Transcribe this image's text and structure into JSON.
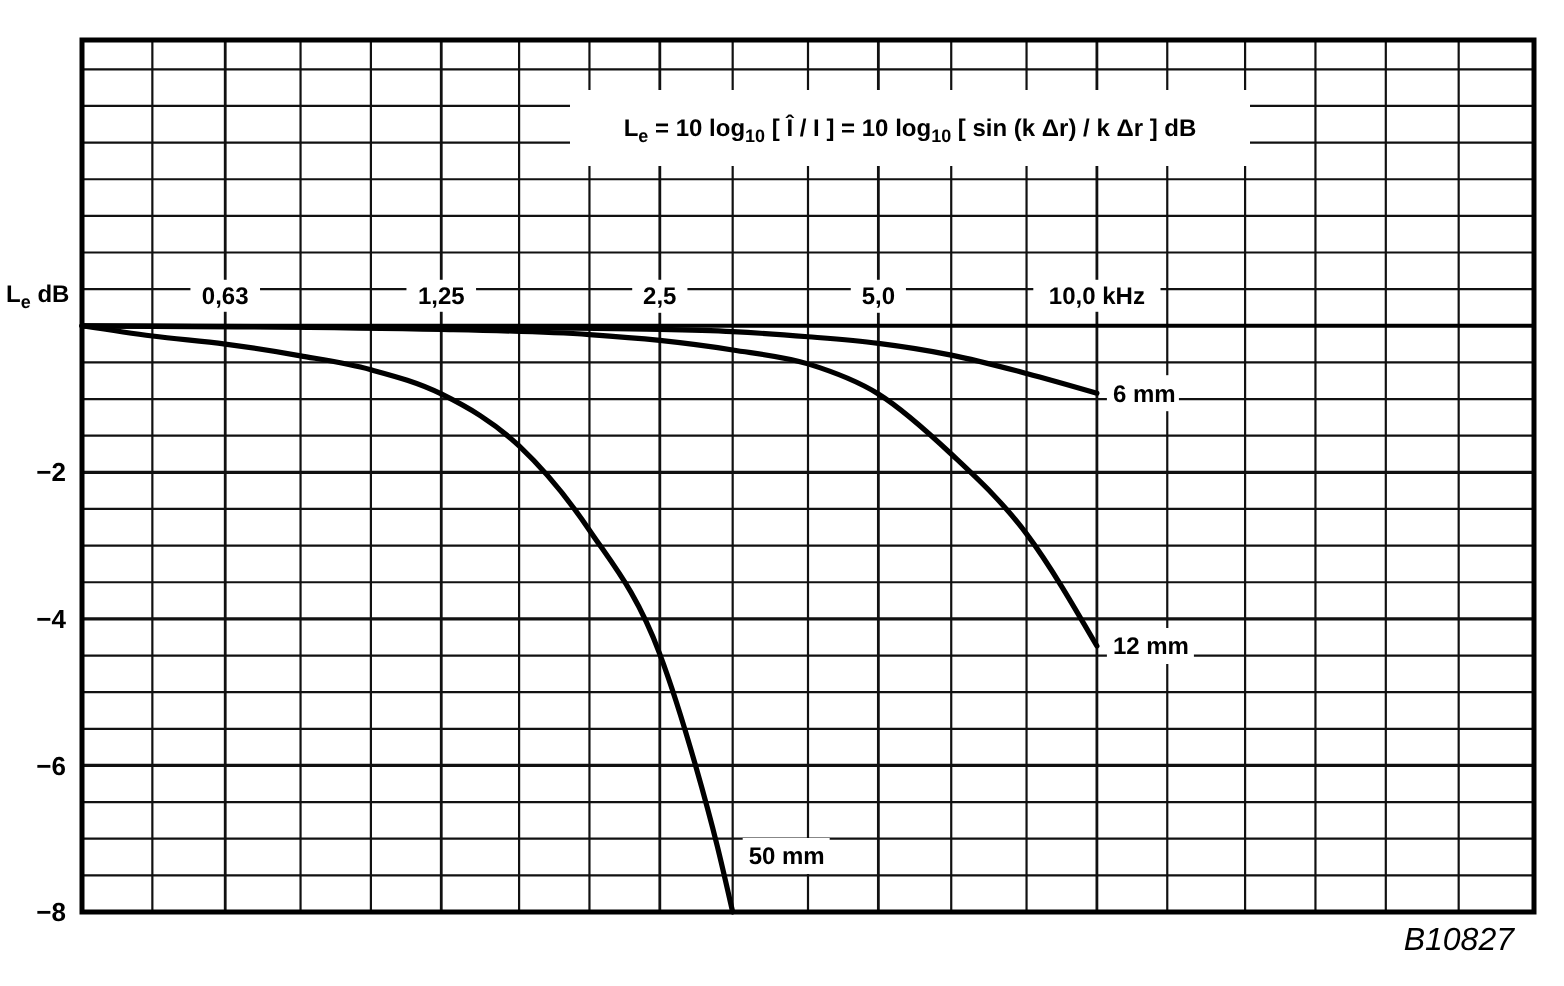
{
  "chart_data": {
    "type": "line",
    "log": "x",
    "grid": true,
    "ylabel": "L$_{e}$ dB",
    "annotations": [
      "L$_{e}$ = 10 log$_{10}$ [ Î / I ] = 10 log$_{10}$ [ sin (k Δr) / k Δr ] dB",
      "B10827"
    ],
    "xlim": [
      0.4,
      40
    ],
    "xticks": [
      {
        "value": 0.4,
        "label": null
      },
      {
        "value": 0.5,
        "label": null
      },
      {
        "value": 0.63,
        "label": "0,63"
      },
      {
        "value": 0.8,
        "label": null
      },
      {
        "value": 1,
        "label": null
      },
      {
        "value": 1.25,
        "label": "1,25"
      },
      {
        "value": 1.6,
        "label": null
      },
      {
        "value": 2,
        "label": null
      },
      {
        "value": 2.5,
        "label": "2,5"
      },
      {
        "value": 3.15,
        "label": null
      },
      {
        "value": 4,
        "label": null
      },
      {
        "value": 5,
        "label": "5,0"
      },
      {
        "value": 6.3,
        "label": null
      },
      {
        "value": 8,
        "label": null
      },
      {
        "value": 10,
        "label": "10,0 kHz"
      },
      {
        "value": 12.5,
        "label": null
      },
      {
        "value": 16,
        "label": null
      },
      {
        "value": 20,
        "label": null
      },
      {
        "value": 25,
        "label": null
      },
      {
        "value": 31.5,
        "label": null
      },
      {
        "value": 40,
        "label": null
      }
    ],
    "ylim": [
      -8,
      3.9
    ],
    "yticks": [
      {
        "value": -8,
        "label": "−8"
      },
      {
        "value": -7.5,
        "label": null
      },
      {
        "value": -7,
        "label": null
      },
      {
        "value": -6.5,
        "label": null
      },
      {
        "value": -6,
        "label": "−6"
      },
      {
        "value": -5.5,
        "label": null
      },
      {
        "value": -5,
        "label": null
      },
      {
        "value": -4.5,
        "label": null
      },
      {
        "value": -4,
        "label": "−4"
      },
      {
        "value": -3.5,
        "label": null
      },
      {
        "value": -3,
        "label": null
      },
      {
        "value": -2.5,
        "label": null
      },
      {
        "value": -2,
        "label": "−2"
      },
      {
        "value": -1.5,
        "label": null
      },
      {
        "value": -1,
        "label": null
      },
      {
        "value": -0.5,
        "label": null
      },
      {
        "value": 0,
        "label": null
      },
      {
        "value": 0.5,
        "label": null
      },
      {
        "value": 1,
        "label": null
      },
      {
        "value": 1.5,
        "label": null
      },
      {
        "value": 2,
        "label": null
      },
      {
        "value": 2.5,
        "label": null
      },
      {
        "value": 3,
        "label": null
      },
      {
        "value": 3.5,
        "label": null
      }
    ],
    "line_style": "solid",
    "series": [
      {
        "name": "6 mm",
        "color": "#000000",
        "x": [
          0.4,
          1.25,
          2.5,
          3.15,
          4,
          5,
          6.3,
          8,
          10
        ],
        "values": [
          0,
          -0.02,
          -0.05,
          -0.08,
          -0.15,
          -0.24,
          -0.4,
          -0.65,
          -0.92
        ]
      },
      {
        "name": "12 mm",
        "color": "#000000",
        "x": [
          0.4,
          1.25,
          2,
          2.5,
          3.15,
          4,
          5,
          6.3,
          8,
          10
        ],
        "values": [
          0,
          -0.05,
          -0.12,
          -0.2,
          -0.33,
          -0.52,
          -0.93,
          -1.75,
          -2.84,
          -4.37
        ]
      },
      {
        "name": "50 mm",
        "color": "#000000",
        "x": [
          0.4,
          0.5,
          0.63,
          0.8,
          1,
          1.25,
          1.6,
          2,
          2.5,
          2.8,
          3,
          3.15
        ],
        "values": [
          0,
          -0.14,
          -0.25,
          -0.41,
          -0.6,
          -0.93,
          -1.64,
          -2.79,
          -4.48,
          -6,
          -7.1,
          -8
        ]
      }
    ]
  }
}
